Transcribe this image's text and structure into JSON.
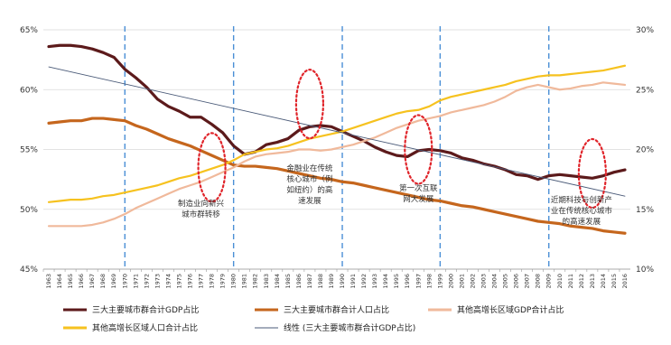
{
  "chart_data": {
    "type": "line",
    "x": [
      1963,
      1964,
      1965,
      1966,
      1967,
      1968,
      1969,
      1970,
      1971,
      1972,
      1973,
      1974,
      1975,
      1976,
      1977,
      1978,
      1979,
      1980,
      1981,
      1982,
      1983,
      1984,
      1985,
      1986,
      1987,
      1988,
      1989,
      1990,
      1991,
      1992,
      1993,
      1994,
      1995,
      1996,
      1997,
      1998,
      1999,
      2000,
      2001,
      2002,
      2003,
      2004,
      2005,
      2006,
      2007,
      2008,
      2009,
      2010,
      2011,
      2012,
      2013,
      2014,
      2015,
      2016
    ],
    "y_left": {
      "min": 45,
      "max": 65,
      "ticks": [
        "45%",
        "50%",
        "55%",
        "60%",
        "65%"
      ]
    },
    "y_right": {
      "min": 10,
      "max": 30,
      "ticks": [
        "10%",
        "15%",
        "20%",
        "25%",
        "30%"
      ]
    },
    "series": [
      {
        "name": "三大主要城市群合计GDP占比",
        "axis": "left",
        "color": "#5c1a1b",
        "values": [
          63.6,
          63.7,
          63.7,
          63.6,
          63.4,
          63.1,
          62.7,
          61.7,
          61.0,
          60.2,
          59.2,
          58.6,
          58.2,
          57.7,
          57.7,
          57.1,
          56.4,
          55.3,
          54.6,
          54.8,
          55.4,
          55.6,
          55.9,
          56.6,
          56.9,
          57.0,
          56.9,
          56.5,
          56.1,
          55.7,
          55.2,
          54.8,
          54.5,
          54.4,
          54.9,
          55.0,
          54.9,
          54.7,
          54.3,
          54.1,
          53.8,
          53.6,
          53.3,
          52.9,
          52.8,
          52.5,
          52.8,
          52.9,
          52.8,
          52.7,
          52.6,
          52.8,
          53.1,
          53.3
        ]
      },
      {
        "name": "三大主要城市群合计人口占比",
        "axis": "right",
        "color": "#c5661d",
        "values": [
          22.2,
          22.3,
          22.4,
          22.4,
          22.6,
          22.6,
          22.5,
          22.4,
          22.0,
          21.7,
          21.3,
          20.9,
          20.6,
          20.3,
          19.9,
          19.5,
          19.1,
          18.7,
          18.6,
          18.6,
          18.5,
          18.4,
          18.2,
          18.0,
          17.8,
          17.6,
          17.5,
          17.3,
          17.2,
          17.0,
          16.8,
          16.6,
          16.4,
          16.2,
          16.0,
          15.8,
          15.7,
          15.5,
          15.3,
          15.2,
          15.0,
          14.8,
          14.6,
          14.4,
          14.2,
          14.0,
          13.9,
          13.8,
          13.6,
          13.5,
          13.4,
          13.2,
          13.1,
          13.0
        ]
      },
      {
        "name": "其他高增长区域GDP合计占比",
        "axis": "right",
        "color": "#f0b99b",
        "values": [
          13.6,
          13.6,
          13.6,
          13.6,
          13.7,
          13.9,
          14.2,
          14.6,
          15.1,
          15.5,
          15.9,
          16.3,
          16.7,
          17.0,
          17.3,
          17.7,
          18.1,
          18.5,
          19.0,
          19.4,
          19.6,
          19.7,
          19.8,
          20.0,
          20.0,
          19.9,
          20.0,
          20.2,
          20.4,
          20.7,
          21.0,
          21.4,
          21.8,
          22.1,
          22.4,
          22.6,
          22.8,
          23.1,
          23.3,
          23.5,
          23.7,
          24.0,
          24.4,
          24.9,
          25.2,
          25.4,
          25.2,
          25.0,
          25.1,
          25.3,
          25.4,
          25.6,
          25.5,
          25.4
        ]
      },
      {
        "name": "其他高增长区域人口合计占比",
        "axis": "left",
        "color": "#f6c21f",
        "values": [
          50.6,
          50.7,
          50.8,
          50.8,
          50.9,
          51.1,
          51.2,
          51.4,
          51.6,
          51.8,
          52.0,
          52.3,
          52.6,
          52.8,
          53.1,
          53.4,
          53.7,
          54.1,
          54.6,
          54.8,
          55.0,
          55.1,
          55.3,
          55.6,
          55.9,
          56.1,
          56.3,
          56.5,
          56.8,
          57.1,
          57.4,
          57.7,
          58.0,
          58.2,
          58.3,
          58.6,
          59.1,
          59.4,
          59.6,
          59.8,
          60.0,
          60.2,
          60.4,
          60.7,
          60.9,
          61.1,
          61.2,
          61.2,
          61.3,
          61.4,
          61.5,
          61.6,
          61.8,
          62.0
        ]
      },
      {
        "name": "线性 (三大主要城市群合计GDP占比)",
        "axis": "left",
        "color": "#4a5a78",
        "trend": true,
        "start": 61.9,
        "end": 51.1
      }
    ],
    "vlines": [
      1970,
      1980,
      1990,
      1999,
      2009
    ],
    "annotations": [
      {
        "text": [
          "制造业向新兴",
          "城市群转移"
        ],
        "year": 1977
      },
      {
        "text": [
          "金融业在传统",
          "核心城市（例",
          "如纽约）的高",
          "速发展"
        ],
        "year": 1987
      },
      {
        "text": [
          "第一次互联",
          "网大发展"
        ],
        "year": 1997
      },
      {
        "text": [
          "近期科技与创新产",
          "业在传统核心城市",
          "的高速发展"
        ],
        "year": 2012
      }
    ],
    "ellipses": [
      {
        "year": 1978,
        "center_left": 53.5
      },
      {
        "year": 1987,
        "center_left": 58.8
      },
      {
        "year": 1997,
        "center_left": 55.0
      },
      {
        "year": 2013,
        "center_left": 53.0
      }
    ]
  }
}
